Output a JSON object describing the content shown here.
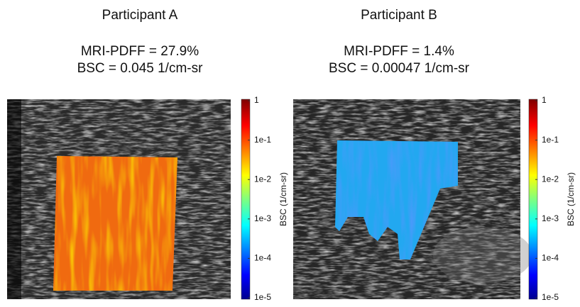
{
  "panels": [
    {
      "title": "Participant A",
      "pdff": "MRI-PDFF = 27.9%",
      "bsc": "BSC = 0.045 1/cm-sr",
      "colorbar": {
        "label": "BSC (1/cm-sr)",
        "ticks": [
          "1",
          "1e-1",
          "1e-2",
          "1e-3",
          "1e-4",
          "1e-5"
        ]
      }
    },
    {
      "title": "Participant B",
      "pdff": "MRI-PDFF = 1.4%",
      "bsc": "BSC = 0.00047 1/cm-sr",
      "colorbar": {
        "label": "BSC (1/cm-sr)",
        "ticks": [
          "1",
          "1e-1",
          "1e-2",
          "1e-3",
          "1e-4",
          "1e-5"
        ]
      }
    }
  ]
}
